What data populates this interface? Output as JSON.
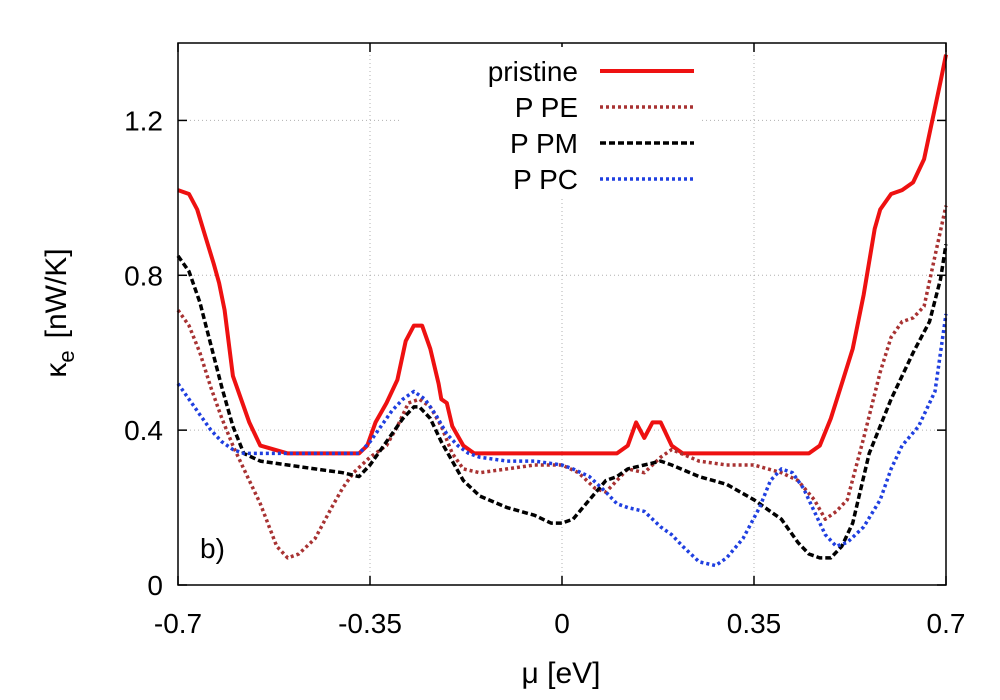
{
  "chart_data": {
    "type": "line",
    "title": "",
    "xlabel": "μ [eV]",
    "ylabel_main": "κ",
    "ylabel_sub": "e",
    "ylabel_unit": "[nW/K]",
    "xlim": [
      -0.7,
      0.7
    ],
    "ylim": [
      0,
      1.4
    ],
    "xticks": [
      {
        "value": -0.7,
        "label": "-0.7"
      },
      {
        "value": -0.35,
        "label": "-0.35"
      },
      {
        "value": 0,
        "label": "0"
      },
      {
        "value": 0.35,
        "label": "0.35"
      },
      {
        "value": 0.7,
        "label": "0.7"
      }
    ],
    "yticks": [
      {
        "value": 0,
        "label": "0"
      },
      {
        "value": 0.4,
        "label": "0.4"
      },
      {
        "value": 0.8,
        "label": "0.8"
      },
      {
        "value": 1.2,
        "label": "1.2"
      }
    ],
    "grid": true,
    "legend_position": "top-right",
    "annotation": "b)",
    "series": [
      {
        "name": "pristine",
        "color": "#ee1111",
        "style": "solid",
        "x": [
          -0.7,
          -0.68,
          -0.665,
          -0.65,
          -0.635,
          -0.625,
          -0.615,
          -0.6,
          -0.585,
          -0.57,
          -0.55,
          -0.5,
          -0.45,
          -0.4,
          -0.37,
          -0.355,
          -0.34,
          -0.32,
          -0.3,
          -0.285,
          -0.27,
          -0.255,
          -0.24,
          -0.225,
          -0.22,
          -0.21,
          -0.2,
          -0.18,
          -0.16,
          -0.15,
          -0.1,
          0,
          0.1,
          0.12,
          0.135,
          0.15,
          0.165,
          0.18,
          0.2,
          0.22,
          0.3,
          0.4,
          0.45,
          0.47,
          0.49,
          0.51,
          0.53,
          0.55,
          0.57,
          0.58,
          0.6,
          0.62,
          0.64,
          0.66,
          0.675,
          0.69,
          0.7
        ],
        "y": [
          1.02,
          1.01,
          0.97,
          0.9,
          0.83,
          0.78,
          0.71,
          0.54,
          0.48,
          0.42,
          0.36,
          0.34,
          0.34,
          0.34,
          0.34,
          0.36,
          0.42,
          0.47,
          0.53,
          0.63,
          0.67,
          0.67,
          0.61,
          0.52,
          0.48,
          0.47,
          0.41,
          0.36,
          0.34,
          0.34,
          0.34,
          0.34,
          0.34,
          0.36,
          0.42,
          0.38,
          0.42,
          0.42,
          0.36,
          0.34,
          0.34,
          0.34,
          0.34,
          0.36,
          0.43,
          0.52,
          0.61,
          0.75,
          0.92,
          0.97,
          1.01,
          1.02,
          1.04,
          1.1,
          1.2,
          1.3,
          1.37
        ]
      },
      {
        "name": "P PE",
        "color": "#a83232",
        "style": "dotted",
        "x": [
          -0.7,
          -0.68,
          -0.66,
          -0.64,
          -0.62,
          -0.6,
          -0.58,
          -0.55,
          -0.52,
          -0.5,
          -0.48,
          -0.45,
          -0.42,
          -0.4,
          -0.38,
          -0.35,
          -0.32,
          -0.3,
          -0.28,
          -0.26,
          -0.24,
          -0.22,
          -0.2,
          -0.18,
          -0.15,
          -0.1,
          -0.05,
          0,
          0.03,
          0.06,
          0.08,
          0.1,
          0.12,
          0.15,
          0.18,
          0.2,
          0.25,
          0.3,
          0.35,
          0.4,
          0.43,
          0.46,
          0.48,
          0.5,
          0.52,
          0.55,
          0.58,
          0.6,
          0.62,
          0.64,
          0.66,
          0.68,
          0.7
        ],
        "y": [
          0.71,
          0.67,
          0.6,
          0.51,
          0.43,
          0.36,
          0.3,
          0.21,
          0.1,
          0.07,
          0.08,
          0.12,
          0.2,
          0.25,
          0.29,
          0.33,
          0.36,
          0.41,
          0.47,
          0.48,
          0.46,
          0.41,
          0.34,
          0.3,
          0.29,
          0.3,
          0.31,
          0.31,
          0.29,
          0.25,
          0.24,
          0.27,
          0.3,
          0.29,
          0.33,
          0.35,
          0.32,
          0.31,
          0.31,
          0.29,
          0.27,
          0.22,
          0.17,
          0.19,
          0.22,
          0.38,
          0.55,
          0.64,
          0.68,
          0.69,
          0.72,
          0.85,
          0.98
        ]
      },
      {
        "name": "P PM",
        "color": "#000000",
        "style": "dashed",
        "x": [
          -0.7,
          -0.68,
          -0.66,
          -0.64,
          -0.62,
          -0.6,
          -0.58,
          -0.55,
          -0.5,
          -0.45,
          -0.4,
          -0.37,
          -0.35,
          -0.33,
          -0.31,
          -0.29,
          -0.27,
          -0.26,
          -0.24,
          -0.22,
          -0.2,
          -0.18,
          -0.15,
          -0.1,
          -0.05,
          -0.02,
          0,
          0.02,
          0.05,
          0.08,
          0.1,
          0.12,
          0.15,
          0.18,
          0.2,
          0.25,
          0.3,
          0.35,
          0.4,
          0.43,
          0.45,
          0.47,
          0.49,
          0.51,
          0.53,
          0.56,
          0.6,
          0.64,
          0.67,
          0.69,
          0.7
        ],
        "y": [
          0.85,
          0.81,
          0.73,
          0.62,
          0.51,
          0.41,
          0.34,
          0.32,
          0.31,
          0.3,
          0.29,
          0.28,
          0.31,
          0.35,
          0.39,
          0.43,
          0.46,
          0.46,
          0.43,
          0.37,
          0.32,
          0.27,
          0.23,
          0.2,
          0.18,
          0.16,
          0.16,
          0.17,
          0.22,
          0.27,
          0.28,
          0.3,
          0.31,
          0.32,
          0.31,
          0.28,
          0.26,
          0.22,
          0.17,
          0.11,
          0.08,
          0.07,
          0.07,
          0.1,
          0.16,
          0.34,
          0.48,
          0.6,
          0.68,
          0.79,
          0.88
        ]
      },
      {
        "name": "P PC",
        "color": "#1f3fe0",
        "style": "dotted",
        "x": [
          -0.7,
          -0.68,
          -0.66,
          -0.64,
          -0.62,
          -0.6,
          -0.58,
          -0.55,
          -0.5,
          -0.45,
          -0.4,
          -0.37,
          -0.35,
          -0.33,
          -0.31,
          -0.29,
          -0.27,
          -0.25,
          -0.23,
          -0.21,
          -0.19,
          -0.17,
          -0.15,
          -0.1,
          -0.05,
          0,
          0.02,
          0.05,
          0.08,
          0.1,
          0.12,
          0.15,
          0.18,
          0.2,
          0.22,
          0.25,
          0.28,
          0.3,
          0.33,
          0.36,
          0.38,
          0.4,
          0.42,
          0.44,
          0.46,
          0.48,
          0.5,
          0.52,
          0.55,
          0.58,
          0.6,
          0.62,
          0.65,
          0.68,
          0.7
        ],
        "y": [
          0.52,
          0.48,
          0.44,
          0.4,
          0.37,
          0.35,
          0.34,
          0.34,
          0.34,
          0.34,
          0.34,
          0.34,
          0.37,
          0.41,
          0.45,
          0.48,
          0.5,
          0.48,
          0.44,
          0.39,
          0.36,
          0.34,
          0.33,
          0.32,
          0.32,
          0.31,
          0.3,
          0.28,
          0.24,
          0.21,
          0.2,
          0.19,
          0.15,
          0.13,
          0.1,
          0.06,
          0.05,
          0.07,
          0.12,
          0.2,
          0.27,
          0.3,
          0.29,
          0.25,
          0.19,
          0.13,
          0.1,
          0.11,
          0.15,
          0.22,
          0.3,
          0.36,
          0.41,
          0.5,
          0.7
        ]
      }
    ]
  }
}
